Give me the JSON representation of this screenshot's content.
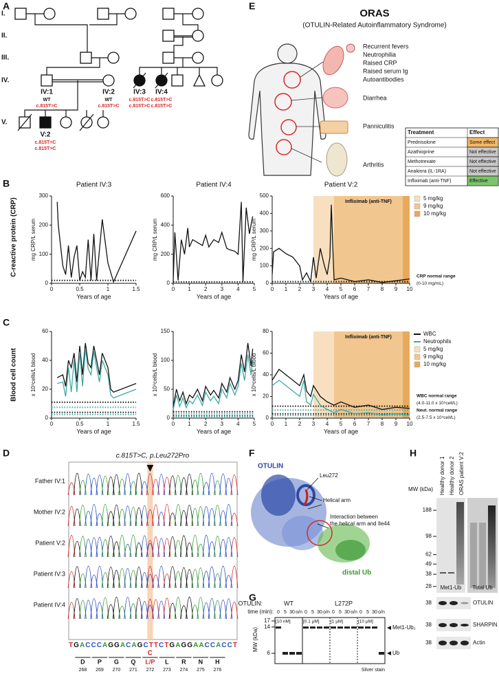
{
  "panel_labels": [
    "A",
    "B",
    "C",
    "D",
    "E",
    "F",
    "G",
    "H"
  ],
  "pedigree": {
    "generations": [
      "I.",
      "II.",
      "III.",
      "IV.",
      "V."
    ],
    "individuals": [
      {
        "label": "IV:1",
        "genotype": [
          "WT",
          "c.815T>C"
        ]
      },
      {
        "label": "IV:2",
        "genotype": [
          "WT",
          "c.815T>C"
        ]
      },
      {
        "label": "IV:3",
        "genotype": [
          "c.815T>C",
          "c.815T>C"
        ]
      },
      {
        "label": "IV:4",
        "genotype": [
          "c.815T>C",
          "c.815T>C"
        ]
      },
      {
        "label": "V:2",
        "genotype": [
          "c.815T>C",
          "c.815T>C"
        ]
      }
    ]
  },
  "oras": {
    "title": "ORAS",
    "subtitle": "(OTULIN-Related Autoinflammatory Syndrome)",
    "symptoms": [
      "Recurrent fevers",
      "Neutrophilia",
      "Raised CRP",
      "Raised serum Ig",
      "Autoantibodies"
    ],
    "organs": [
      "Diarrhea",
      "Panniculitis",
      "Arthritis"
    ],
    "table": {
      "header": [
        "Treatment",
        "Effect"
      ],
      "rows": [
        {
          "treatment": "Prednisolone",
          "effect": "Some effect",
          "color": "#f2b866"
        },
        {
          "treatment": "Azathioprine",
          "effect": "Not effective",
          "color": "#c9c9c9"
        },
        {
          "treatment": "Methotrexate",
          "effect": "Not effective",
          "color": "#c9c9c9"
        },
        {
          "treatment": "Anakinra (IL-1RA)",
          "effect": "Not effective",
          "color": "#c9c9c9"
        },
        {
          "treatment": "Infliximab (anti-TNF)",
          "effect": "Effective",
          "color": "#7cc46a"
        }
      ]
    }
  },
  "crp_axis_title": "C-reactive protein (CRP)",
  "blood_axis_title": "Blood cell count",
  "chart_data": [
    {
      "type": "line",
      "title": "Patient IV:3",
      "x_label": "Years of age",
      "y_label": "mg CRP/L serum",
      "xlim": [
        0,
        1.5
      ],
      "xticks": [
        0,
        0.5,
        1,
        1.5
      ],
      "ylim": [
        0,
        300
      ],
      "yticks": [
        0,
        100,
        200,
        300
      ],
      "x": [
        0.1,
        0.12,
        0.2,
        0.25,
        0.3,
        0.35,
        0.4,
        0.45,
        0.5,
        0.55,
        0.6,
        0.65,
        0.7,
        0.75,
        0.8,
        0.9,
        1.0,
        1.1,
        1.5
      ],
      "series": [
        {
          "color": "#111111",
          "values": [
            280,
            200,
            60,
            30,
            130,
            20,
            90,
            130,
            10,
            40,
            20,
            150,
            10,
            170,
            10,
            220,
            70,
            5,
            180
          ]
        }
      ],
      "reference_lines": [
        {
          "value": 10,
          "color": "#111111"
        }
      ]
    },
    {
      "type": "line",
      "title": "Patient IV:4",
      "x_label": "Years of age",
      "y_label": "mg CRP/L serum",
      "xlim": [
        0,
        5
      ],
      "xticks": [
        0,
        1,
        2,
        3,
        4,
        5
      ],
      "ylim": [
        0,
        600
      ],
      "yticks": [
        0,
        200,
        400,
        600
      ],
      "x": [
        0,
        0.1,
        0.3,
        0.5,
        0.7,
        0.9,
        1.0,
        1.2,
        1.5,
        1.8,
        2.0,
        2.2,
        2.5,
        2.8,
        3.0,
        3.3,
        3.5,
        3.8,
        4.0,
        4.2,
        4.3,
        4.5,
        4.7,
        4.9
      ],
      "series": [
        {
          "color": "#111111",
          "values": [
            10,
            350,
            20,
            300,
            200,
            380,
            250,
            300,
            280,
            260,
            330,
            250,
            300,
            280,
            350,
            240,
            230,
            220,
            200,
            560,
            10,
            520,
            340,
            460
          ]
        }
      ],
      "reference_lines": [
        {
          "value": 10,
          "color": "#111111"
        }
      ]
    },
    {
      "type": "line",
      "title": "Patient V:2",
      "x_label": "Years of age",
      "y_label": "mg CRP/L serum",
      "xlim": [
        0,
        10
      ],
      "xticks": [
        0,
        1,
        2,
        3,
        4,
        5,
        6,
        7,
        8,
        9,
        10
      ],
      "ylim": [
        0,
        500
      ],
      "yticks": [
        0,
        100,
        200,
        300,
        400,
        500
      ],
      "x": [
        0,
        0.1,
        0.5,
        1,
        1.5,
        2,
        2.2,
        2.5,
        2.8,
        3,
        3.2,
        3.5,
        3.8,
        4,
        4.2,
        4.3,
        4.5,
        5,
        6,
        7,
        8,
        9,
        10
      ],
      "series": [
        {
          "color": "#111111",
          "values": [
            50,
            180,
            200,
            170,
            150,
            100,
            20,
            60,
            10,
            150,
            30,
            200,
            100,
            50,
            150,
            450,
            20,
            30,
            10,
            20,
            5,
            15,
            25
          ]
        }
      ],
      "bands": [
        {
          "name": "5 mg/kg",
          "from": 3,
          "to": 4.5,
          "color": "#f7dfbf"
        },
        {
          "name": "9 mg/kg",
          "from": 4.5,
          "to": 9.5,
          "color": "#f1c68f"
        },
        {
          "name": "10 mg/kg",
          "from": 9.5,
          "to": 10,
          "color": "#e9a95c"
        }
      ],
      "band_label": "Infliximab (anti-TNF)",
      "reference_lines": [
        {
          "value": 10,
          "color": "#111111"
        }
      ],
      "reference_labels": [
        "CRP normal range",
        "(0-10 mg/mL)"
      ]
    },
    {
      "type": "line",
      "x_label": "Years of age",
      "y_label": "x 10⁹cells/L blood",
      "xlim": [
        0,
        1.5
      ],
      "xticks": [
        0,
        0.5,
        1,
        1.5
      ],
      "ylim": [
        0,
        60
      ],
      "yticks": [
        0,
        20,
        40,
        60
      ],
      "x": [
        0.1,
        0.2,
        0.25,
        0.3,
        0.35,
        0.4,
        0.45,
        0.5,
        0.55,
        0.6,
        0.65,
        0.7,
        0.75,
        0.8,
        0.85,
        0.9,
        1.0,
        1.05,
        1.1,
        1.5
      ],
      "series": [
        {
          "color": "#111111",
          "values": [
            28,
            30,
            22,
            40,
            35,
            45,
            25,
            50,
            30,
            52,
            38,
            35,
            50,
            40,
            30,
            45,
            35,
            20,
            18,
            24
          ]
        },
        {
          "color": "#3fa8a3",
          "values": [
            24,
            25,
            15,
            35,
            18,
            40,
            18,
            46,
            22,
            48,
            34,
            30,
            46,
            35,
            25,
            40,
            30,
            16,
            14,
            20
          ]
        }
      ],
      "reference_lines": [
        {
          "value": 11,
          "color": "#111111"
        },
        {
          "value": 4,
          "color": "#111111"
        },
        {
          "value": 7.5,
          "color": "#3fa8a3"
        },
        {
          "value": 2.5,
          "color": "#3fa8a3"
        }
      ]
    },
    {
      "type": "line",
      "x_label": "Years of age",
      "y_label": "x 10⁹cells/L blood",
      "xlim": [
        0,
        5
      ],
      "xticks": [
        0,
        1,
        2,
        3,
        4,
        5
      ],
      "ylim": [
        0,
        150
      ],
      "yticks": [
        0,
        50,
        100,
        150
      ],
      "x": [
        0,
        0.2,
        0.4,
        0.6,
        0.8,
        1,
        1.2,
        1.5,
        1.8,
        2,
        2.3,
        2.5,
        2.8,
        3,
        3.3,
        3.5,
        3.8,
        4,
        4.2,
        4.4,
        4.6,
        4.8,
        4.9
      ],
      "series": [
        {
          "color": "#111111",
          "values": [
            20,
            50,
            30,
            45,
            25,
            40,
            35,
            50,
            30,
            55,
            40,
            48,
            35,
            60,
            45,
            70,
            50,
            65,
            110,
            80,
            130,
            90,
            120
          ]
        },
        {
          "color": "#3fa8a3",
          "values": [
            15,
            40,
            20,
            35,
            18,
            30,
            25,
            40,
            22,
            45,
            30,
            38,
            25,
            50,
            35,
            60,
            40,
            55,
            95,
            65,
            110,
            75,
            100
          ]
        }
      ],
      "reference_lines": [
        {
          "value": 11,
          "color": "#111111"
        },
        {
          "value": 4,
          "color": "#111111"
        },
        {
          "value": 7.5,
          "color": "#3fa8a3"
        },
        {
          "value": 2.5,
          "color": "#3fa8a3"
        }
      ]
    },
    {
      "type": "line",
      "x_label": "Years of age",
      "y_label": "x 10⁹cells/L blood",
      "xlim": [
        0,
        10
      ],
      "xticks": [
        0,
        1,
        2,
        3,
        4,
        5,
        6,
        7,
        8,
        9,
        10
      ],
      "ylim": [
        0,
        80
      ],
      "yticks": [
        0,
        20,
        40,
        60,
        80
      ],
      "x": [
        0,
        0.5,
        1,
        1.5,
        2,
        2.3,
        2.5,
        2.8,
        3,
        3.5,
        4,
        4.5,
        5,
        6,
        7,
        8,
        9,
        10
      ],
      "series": [
        {
          "name": "WBC",
          "color": "#111111",
          "values": [
            35,
            45,
            40,
            35,
            30,
            40,
            25,
            20,
            30,
            20,
            15,
            12,
            15,
            10,
            12,
            8,
            10,
            9
          ]
        },
        {
          "name": "Neutrophils",
          "color": "#3fa8a3",
          "values": [
            30,
            35,
            30,
            25,
            20,
            35,
            15,
            12,
            22,
            12,
            8,
            5,
            8,
            4,
            5,
            3,
            4,
            3
          ]
        }
      ],
      "bands": [
        {
          "name": "5 mg/kg",
          "from": 3,
          "to": 4.5,
          "color": "#f7dfbf"
        },
        {
          "name": "9 mg/kg",
          "from": 4.5,
          "to": 9.5,
          "color": "#f1c68f"
        },
        {
          "name": "10 mg/kg",
          "from": 9.5,
          "to": 10,
          "color": "#e9a95c"
        }
      ],
      "band_label": "Infliximab (anti-TNF)",
      "reference_lines": [
        {
          "value": 11,
          "color": "#111111"
        },
        {
          "value": 4,
          "color": "#111111"
        },
        {
          "value": 7.5,
          "color": "#3fa8a3"
        },
        {
          "value": 2.5,
          "color": "#3fa8a3"
        }
      ],
      "reference_labels": [
        "WBC normal range",
        "(4.0-11.0 x 10⁹cell/L)",
        "Neut. normal range",
        "(2.5-7.5 x 10⁹cell/L)"
      ]
    }
  ],
  "sequencing": {
    "title": "c.815T>C, p.Leu272Pro",
    "samples": [
      "Father IV:1",
      "Mother IV:2",
      "Patient V:2",
      "Patient IV:3",
      "Patient IV:4"
    ],
    "sequence": "TGACCCAGGACAGCTTCTGAGGAACCACCT",
    "mutant_base": "C",
    "codons": [
      {
        "aa": "D",
        "pos": 268
      },
      {
        "aa": "P",
        "pos": 269
      },
      {
        "aa": "G",
        "pos": 270
      },
      {
        "aa": "Q",
        "pos": 271
      },
      {
        "aa": "L/P",
        "pos": 272
      },
      {
        "aa": "L",
        "pos": 273
      },
      {
        "aa": "R",
        "pos": 274
      },
      {
        "aa": "N",
        "pos": 275
      },
      {
        "aa": "H",
        "pos": 276
      }
    ]
  },
  "structure": {
    "protein": "OTULIN",
    "residue": "Leu272",
    "helical_arm": "Helical arm",
    "interaction": [
      "Interaction between",
      "the helical arm and Ile44"
    ],
    "ub": "distal Ub"
  },
  "gel": {
    "enzyme_label": "OTULIN:",
    "groups": [
      "WT",
      "L272P"
    ],
    "time_label": "time (min):",
    "times": [
      "0",
      "5",
      "30",
      "o/n"
    ],
    "concentrations": [
      "[10 nM]",
      "[0.1 µM]",
      "[1 µM]",
      "[10 µM]"
    ],
    "mw_label": "MW (kDa)",
    "mw": [
      17,
      14,
      6
    ],
    "bands": [
      "Met1-Ub₂",
      "Ub"
    ],
    "stain": "Silver stain"
  },
  "blot": {
    "lanes": [
      "Healthy donor 1",
      "Healthy donor 2",
      "ORAS patient V:2"
    ],
    "mw_label": "MW (kDa)",
    "mw": [
      188,
      98,
      62,
      49,
      38,
      28
    ],
    "panels": [
      "Met1-Ub",
      "Total Ub"
    ],
    "proteins": [
      {
        "name": "OTULIN",
        "mw": 38
      },
      {
        "name": "SHARPIN",
        "mw": 38
      },
      {
        "name": "Actin",
        "mw": 38
      }
    ]
  }
}
